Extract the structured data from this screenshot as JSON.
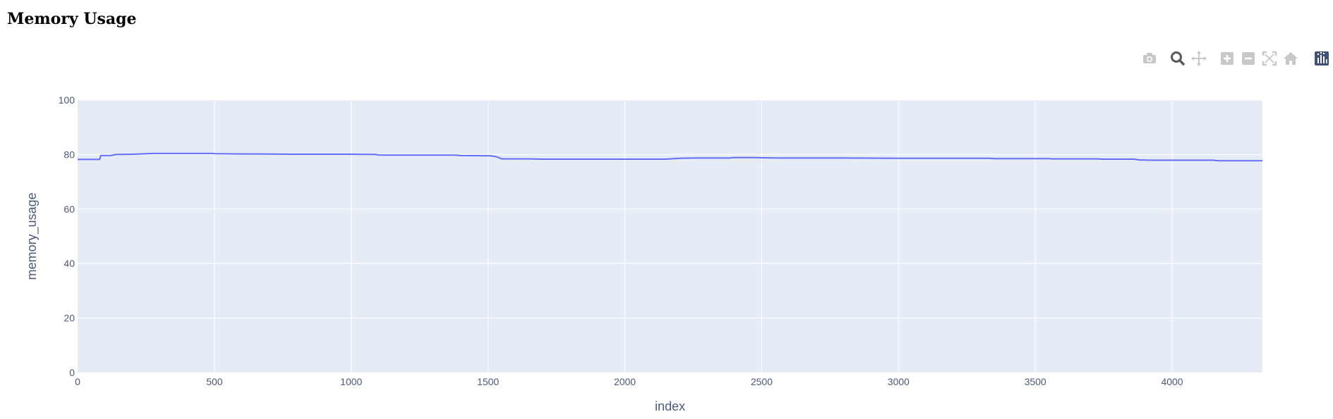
{
  "page": {
    "title": "Memory Usage"
  },
  "modebar": {
    "buttons": [
      {
        "name": "camera-icon",
        "active": false
      },
      {
        "name": "zoom-icon",
        "active": true
      },
      {
        "name": "pan-icon",
        "active": false
      },
      {
        "name": "zoom-in-icon",
        "active": false
      },
      {
        "name": "zoom-out-icon",
        "active": false
      },
      {
        "name": "autoscale-icon",
        "active": false
      },
      {
        "name": "reset-axes-icon",
        "active": false
      },
      {
        "name": "plotly-logo-icon",
        "active": false
      }
    ]
  },
  "colors": {
    "plot_bg": "#e5ecf6",
    "grid": "#ffffff",
    "line": "#636efa",
    "text": "#4c5a75"
  },
  "chart_data": {
    "type": "line",
    "title": "",
    "xlabel": "index",
    "ylabel": "memory_usage",
    "xlim": [
      0,
      4330
    ],
    "ylim": [
      0,
      100
    ],
    "xticks": [
      0,
      500,
      1000,
      1500,
      2000,
      2500,
      3000,
      3500,
      4000
    ],
    "yticks": [
      0,
      20,
      40,
      60,
      80,
      100
    ],
    "grid": true,
    "series": [
      {
        "x": [
          0,
          80,
          85,
          120,
          140,
          200,
          280,
          490,
          500,
          600,
          640,
          780,
          1000,
          1090,
          1100,
          1380,
          1400,
          1510,
          1530,
          1550,
          1650,
          1700,
          2150,
          2200,
          2250,
          2380,
          2400,
          2480,
          2500,
          2560,
          2800,
          3000,
          3330,
          3350,
          3550,
          3560,
          3730,
          3740,
          3860,
          3880,
          3920,
          4150,
          4170,
          4330
        ],
        "y": [
          78.2,
          78.2,
          79.6,
          79.6,
          80.0,
          80.1,
          80.4,
          80.4,
          80.3,
          80.2,
          80.2,
          80.1,
          80.1,
          80.0,
          79.8,
          79.8,
          79.6,
          79.5,
          79.2,
          78.4,
          78.4,
          78.3,
          78.3,
          78.6,
          78.7,
          78.7,
          78.9,
          78.9,
          78.8,
          78.7,
          78.7,
          78.6,
          78.6,
          78.5,
          78.5,
          78.4,
          78.4,
          78.3,
          78.3,
          78.0,
          77.9,
          77.9,
          77.7,
          77.7
        ]
      }
    ]
  }
}
